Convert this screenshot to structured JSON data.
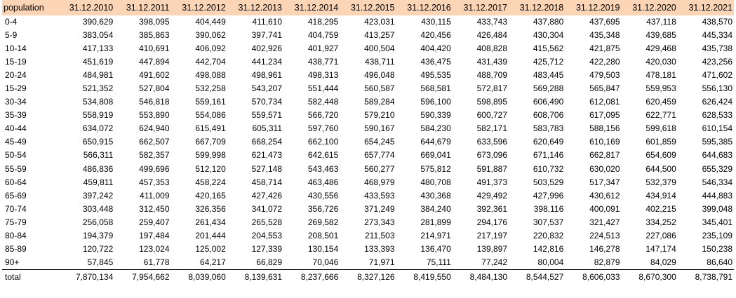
{
  "header": {
    "label": "population",
    "dates": [
      "31.12.2010",
      "31.12.2011",
      "31.12.2012",
      "31.12.2013",
      "31.12.2014",
      "31.12.2015",
      "31.12.2016",
      "31.12.2017",
      "31.12.2018",
      "31.12.2019",
      "31.12.2020",
      "31.12.2021"
    ]
  },
  "rows": [
    {
      "label": "0-4",
      "values": [
        "390,629",
        "398,095",
        "404,449",
        "411,610",
        "418,295",
        "423,031",
        "430,115",
        "433,743",
        "437,880",
        "437,695",
        "437,118",
        "438,570"
      ]
    },
    {
      "label": "5-9",
      "values": [
        "383,054",
        "385,863",
        "390,062",
        "397,741",
        "404,759",
        "413,257",
        "420,456",
        "426,484",
        "430,304",
        "435,348",
        "439,685",
        "445,334"
      ]
    },
    {
      "label": "10-14",
      "values": [
        "417,133",
        "410,691",
        "406,092",
        "402,926",
        "401,927",
        "400,504",
        "404,420",
        "408,828",
        "415,562",
        "421,875",
        "429,468",
        "435,738"
      ]
    },
    {
      "label": "15-19",
      "values": [
        "451,619",
        "447,894",
        "442,704",
        "441,234",
        "438,771",
        "438,711",
        "436,475",
        "431,439",
        "425,712",
        "422,280",
        "420,030",
        "423,256"
      ]
    },
    {
      "label": "20-24",
      "values": [
        "484,981",
        "491,602",
        "498,088",
        "498,961",
        "498,313",
        "496,048",
        "495,535",
        "488,709",
        "483,445",
        "479,503",
        "478,181",
        "471,602"
      ]
    },
    {
      "label": "15-29",
      "values": [
        "521,352",
        "527,804",
        "532,258",
        "543,207",
        "551,444",
        "560,587",
        "568,581",
        "572,817",
        "569,288",
        "565,847",
        "559,953",
        "556,130"
      ]
    },
    {
      "label": "30-34",
      "values": [
        "534,808",
        "546,818",
        "559,161",
        "570,734",
        "582,448",
        "589,284",
        "596,100",
        "598,895",
        "606,490",
        "612,081",
        "620,459",
        "626,424"
      ]
    },
    {
      "label": "35-39",
      "values": [
        "558,919",
        "553,890",
        "554,086",
        "559,571",
        "566,720",
        "579,210",
        "590,339",
        "600,727",
        "608,706",
        "617,095",
        "622,771",
        "628,533"
      ]
    },
    {
      "label": "40-44",
      "values": [
        "634,072",
        "624,940",
        "615,491",
        "605,311",
        "597,760",
        "590,167",
        "584,230",
        "582,171",
        "583,783",
        "588,156",
        "599,618",
        "610,154"
      ]
    },
    {
      "label": "45-49",
      "values": [
        "650,915",
        "662,507",
        "667,709",
        "668,254",
        "662,100",
        "654,245",
        "644,679",
        "633,596",
        "620,649",
        "610,169",
        "601,859",
        "595,385"
      ]
    },
    {
      "label": "50-54",
      "values": [
        "566,311",
        "582,357",
        "599,998",
        "621,473",
        "642,615",
        "657,774",
        "669,041",
        "673,096",
        "671,146",
        "662,817",
        "654,609",
        "644,683"
      ]
    },
    {
      "label": "55-59",
      "values": [
        "486,836",
        "499,696",
        "512,120",
        "527,148",
        "543,463",
        "560,277",
        "575,812",
        "591,887",
        "610,732",
        "630,020",
        "644,500",
        "655,329"
      ]
    },
    {
      "label": "60-64",
      "values": [
        "459,811",
        "457,353",
        "458,224",
        "458,714",
        "463,486",
        "468,979",
        "480,708",
        "491,373",
        "503,529",
        "517,347",
        "532,379",
        "546,334"
      ]
    },
    {
      "label": "65-69",
      "values": [
        "397,242",
        "411,009",
        "420,165",
        "427,426",
        "430,556",
        "433,593",
        "430,368",
        "429,492",
        "427,996",
        "430,612",
        "434,914",
        "444,883"
      ]
    },
    {
      "label": "70-74",
      "values": [
        "303,448",
        "312,450",
        "326,356",
        "341,072",
        "356,726",
        "371,249",
        "384,240",
        "392,361",
        "398,116",
        "400,091",
        "402,215",
        "399,048"
      ]
    },
    {
      "label": "75-79",
      "values": [
        "256,058",
        "259,407",
        "261,434",
        "265,528",
        "269,582",
        "273,343",
        "281,899",
        "294,176",
        "307,537",
        "321,427",
        "334,252",
        "345,401"
      ]
    },
    {
      "label": "80-84",
      "values": [
        "194,379",
        "197,484",
        "201,444",
        "204,553",
        "208,501",
        "211,503",
        "214,971",
        "217,197",
        "220,832",
        "224,513",
        "227,086",
        "235,109"
      ]
    },
    {
      "label": "85-89",
      "values": [
        "120,722",
        "123,024",
        "125,002",
        "127,339",
        "130,154",
        "133,393",
        "136,470",
        "139,897",
        "142,816",
        "146,278",
        "147,174",
        "150,238"
      ]
    },
    {
      "label": "90+",
      "values": [
        "57,845",
        "61,778",
        "64,217",
        "66,829",
        "70,046",
        "71,971",
        "75,111",
        "77,242",
        "80,004",
        "82,879",
        "84,029",
        "86,640"
      ]
    }
  ],
  "total": {
    "label": "total",
    "values": [
      "7,870,134",
      "7,954,662",
      "8,039,060",
      "8,139,631",
      "8,237,666",
      "8,327,126",
      "8,419,550",
      "8,484,130",
      "8,544,527",
      "8,606,033",
      "8,670,300",
      "8,738,791"
    ]
  },
  "colors": {
    "header_bg": "#fbd5b5"
  }
}
